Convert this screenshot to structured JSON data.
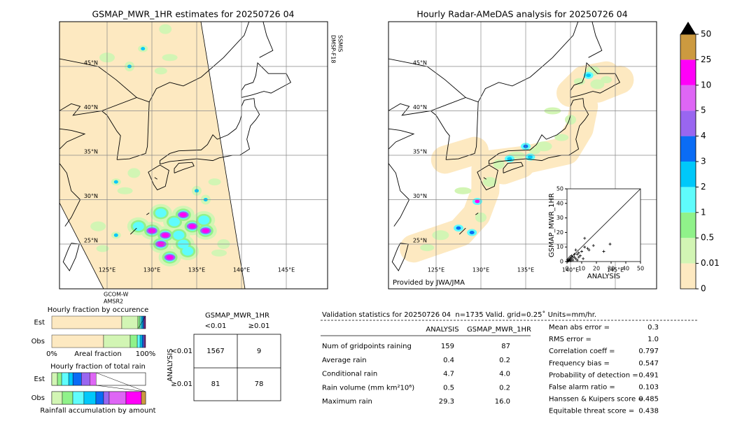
{
  "chart_data": [
    {
      "type": "map",
      "title": "GSMAP_MWR_1HR estimates for 20250726 04",
      "lat_labels": [
        "45°N",
        "40°N",
        "35°N",
        "30°N",
        "25°N"
      ],
      "lon_labels": [
        "125°E",
        "130°E",
        "135°E",
        "140°E",
        "145°E"
      ],
      "annotations": [
        "DMSP-F18",
        "SSMIS",
        "GCOM-W",
        "AMSR2"
      ]
    },
    {
      "type": "map",
      "title": "Hourly Radar-AMeDAS analysis for 20250726 04",
      "lat_labels": [
        "45°N",
        "40°N",
        "35°N",
        "30°N",
        "25°N"
      ],
      "lon_labels": [
        "125°E",
        "130°E",
        "135°E",
        "140°E",
        "145°E"
      ],
      "annotations": [
        "Provided by JWA/JMA"
      ]
    },
    {
      "type": "scatter",
      "xlabel": "ANALYSIS",
      "ylabel": "GSMAP_MWR_1HR",
      "xlim": [
        0,
        50
      ],
      "ylim": [
        0,
        50
      ],
      "xticks": [
        0,
        10,
        20,
        30,
        40,
        50
      ],
      "yticks": [
        0,
        10,
        20,
        30,
        40,
        50
      ],
      "x": [
        0.5,
        1,
        1.5,
        2,
        2.5,
        3,
        1,
        0.3,
        4,
        5,
        6,
        7,
        8,
        9,
        10,
        6,
        12,
        12,
        14,
        15,
        18,
        25,
        29.3,
        4,
        3,
        2,
        8,
        11,
        5,
        7
      ],
      "y": [
        0.3,
        0.5,
        1,
        1.5,
        0.5,
        2,
        2,
        1.2,
        1,
        3,
        2,
        5,
        6,
        4,
        7,
        8,
        10,
        16,
        9,
        8,
        11,
        7,
        12,
        3,
        4,
        3,
        3,
        2,
        5,
        1
      ],
      "color": "#000000"
    },
    {
      "type": "colorbar",
      "ticks": [
        0,
        0.01,
        0.5,
        1,
        2,
        3,
        4,
        5,
        10,
        25,
        50
      ],
      "colors": [
        "#fde9c1",
        "#d2f5b4",
        "#90f28a",
        "#5ffcfc",
        "#00c8fa",
        "#0a6cf5",
        "#9966f0",
        "#de66f5",
        "#ff00f8",
        "#cc9a40"
      ],
      "extend_color": "#000000"
    },
    {
      "type": "stacked_bar",
      "title": "Hourly fraction by occurence",
      "categories": [
        "Est",
        "Obs"
      ],
      "xlim": [
        0,
        100
      ],
      "xticks": [
        {
          "value": 0,
          "label": "0%"
        },
        {
          "value": 100,
          "label": "100%"
        }
      ],
      "xlabel": "Areal fraction",
      "series": [
        {
          "color": "#fde9c1",
          "values": [
            74.6,
            55.2
          ]
        },
        {
          "color": "#d2f5b4",
          "values": [
            17.2,
            28.4
          ]
        },
        {
          "color": "#90f28a",
          "values": [
            2.2,
            7.5
          ]
        },
        {
          "color": "#5ffcfc",
          "values": [
            1.5,
            3.0
          ]
        },
        {
          "color": "#00c8fa",
          "values": [
            1.5,
            2.2
          ]
        },
        {
          "color": "#0a6cf5",
          "values": [
            1.1,
            1.5
          ]
        },
        {
          "color": "#9966f0",
          "values": [
            0.7,
            1.1
          ]
        },
        {
          "color": "#de66f5",
          "values": [
            0.7,
            0.7
          ]
        },
        {
          "color": "#ff00f8",
          "values": [
            0.5,
            0.4
          ]
        },
        {
          "color": "#cc9a40",
          "values": [
            0,
            0
          ]
        }
      ]
    },
    {
      "type": "stacked_bar",
      "title": "Hourly fraction of total rain",
      "categories": [
        "Est",
        "Obs"
      ],
      "xlim": [
        0,
        100
      ],
      "xlabel": "Rainfall accumulation by amount",
      "series": [
        {
          "color": "#fde9c1",
          "values": [
            0,
            0
          ]
        },
        {
          "color": "#d2f5b4",
          "values": [
            6.0,
            11.2
          ]
        },
        {
          "color": "#90f28a",
          "values": [
            4.5,
            11.2
          ]
        },
        {
          "color": "#5ffcfc",
          "values": [
            7.5,
            11.9
          ]
        },
        {
          "color": "#00c8fa",
          "values": [
            4.5,
            12.7
          ]
        },
        {
          "color": "#0a6cf5",
          "values": [
            9.0,
            8.2
          ]
        },
        {
          "color": "#9966f0",
          "values": [
            9.0,
            6.0
          ]
        },
        {
          "color": "#de66f5",
          "values": [
            6.7,
            17.9
          ]
        },
        {
          "color": "#ff00f8",
          "values": [
            0,
            16.4
          ]
        },
        {
          "color": "#cc9a40",
          "values": [
            0,
            4.5
          ]
        }
      ]
    }
  ],
  "contingency_table": {
    "title": "GSMAP_MWR_1HR",
    "columns": [
      "<0.01",
      "≥0.01"
    ],
    "row_title": "ANALYSIS",
    "rows": [
      "<0.01",
      "≥0.01"
    ],
    "cells": [
      [
        1567,
        9
      ],
      [
        81,
        78
      ]
    ]
  },
  "validation": {
    "header": "Validation statistics for 20250726 04  n=1735 Valid. grid=0.25˚ Units=mm/hr.",
    "columns": [
      "ANALYSIS",
      "GSMAP_MWR_1HR"
    ],
    "rows": [
      {
        "label": "Num of gridpoints raining",
        "values": [
          "159",
          "87"
        ]
      },
      {
        "label": "Average rain",
        "values": [
          "0.4",
          "0.2"
        ]
      },
      {
        "label": "Conditional rain",
        "values": [
          "4.7",
          "4.0"
        ]
      },
      {
        "label": "Rain volume (mm km²10⁶)",
        "values": [
          "0.5",
          "0.2"
        ]
      },
      {
        "label": "Maximum rain",
        "values": [
          "29.3",
          "16.0"
        ]
      }
    ],
    "scores": [
      {
        "label": "Mean abs error =",
        "value": "0.3"
      },
      {
        "label": "RMS error =",
        "value": "1.0"
      },
      {
        "label": "Correlation coeff =",
        "value": "0.797"
      },
      {
        "label": "Frequency bias =",
        "value": "0.547"
      },
      {
        "label": "Probability of detection =",
        "value": "0.491"
      },
      {
        "label": "False alarm ratio =",
        "value": "0.103"
      },
      {
        "label": "Hanssen & Kuipers score =",
        "value": "0.485"
      },
      {
        "label": "Equitable threat score =",
        "value": "0.438"
      }
    ]
  }
}
